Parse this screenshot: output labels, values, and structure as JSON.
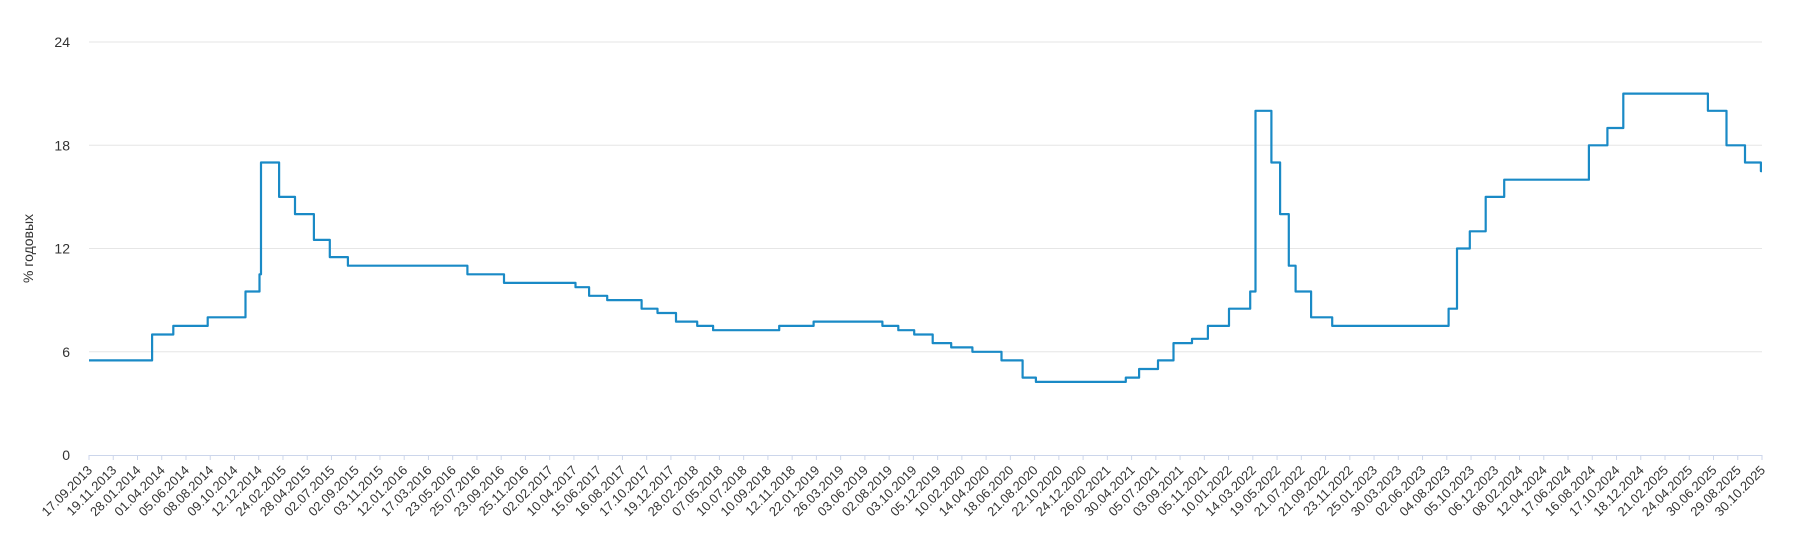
{
  "chart_data": {
    "type": "line",
    "title": "",
    "xlabel": "",
    "ylabel": "% годовых",
    "ylim": [
      0,
      24
    ],
    "yticks": [
      0,
      6,
      12,
      18,
      24
    ],
    "grid": true,
    "legend": "none",
    "colors": {
      "line": "#1a8ac6",
      "grid": "#e6e6e6",
      "axis": "#ccd6eb",
      "text": "#333333"
    },
    "xticks": [
      "17.09.2013",
      "19.11.2013",
      "28.01.2014",
      "01.04.2014",
      "05.06.2014",
      "08.08.2014",
      "09.10.2014",
      "12.12.2014",
      "24.02.2015",
      "28.04.2015",
      "02.07.2015",
      "02.09.2015",
      "03.11.2015",
      "12.01.2016",
      "17.03.2016",
      "23.05.2016",
      "25.07.2016",
      "23.09.2016",
      "25.11.2016",
      "02.02.2017",
      "10.04.2017",
      "15.06.2017",
      "16.08.2017",
      "17.10.2017",
      "19.12.2017",
      "28.02.2018",
      "07.05.2018",
      "10.07.2018",
      "10.09.2018",
      "12.11.2018",
      "22.01.2019",
      "26.03.2019",
      "03.06.2019",
      "02.08.2019",
      "03.10.2019",
      "05.12.2019",
      "10.02.2020",
      "14.04.2020",
      "18.06.2020",
      "21.08.2020",
      "22.10.2020",
      "24.12.2020",
      "26.02.2021",
      "30.04.2021",
      "05.07.2021",
      "03.09.2021",
      "05.11.2021",
      "10.01.2022",
      "14.03.2022",
      "19.05.2022",
      "21.07.2022",
      "21.09.2022",
      "23.11.2022",
      "25.01.2023",
      "30.03.2023",
      "02.06.2023",
      "04.08.2023",
      "05.10.2023",
      "06.12.2023",
      "08.02.2024",
      "12.04.2024",
      "17.06.2024",
      "16.08.2024",
      "17.10.2024",
      "18.12.2024",
      "21.02.2025",
      "24.04.2025",
      "30.06.2025",
      "29.08.2025",
      "30.10.2025"
    ],
    "series": [
      {
        "values": [
          [
            "17.09.2013",
            5.5
          ],
          [
            "03.03.2014",
            7.0
          ],
          [
            "28.04.2014",
            7.5
          ],
          [
            "28.07.2014",
            8.0
          ],
          [
            "05.11.2014",
            9.5
          ],
          [
            "12.12.2014",
            10.5
          ],
          [
            "16.12.2014",
            17.0
          ],
          [
            "02.02.2015",
            15.0
          ],
          [
            "16.03.2015",
            14.0
          ],
          [
            "05.05.2015",
            12.5
          ],
          [
            "16.06.2015",
            11.5
          ],
          [
            "03.08.2015",
            11.0
          ],
          [
            "14.06.2016",
            10.5
          ],
          [
            "19.09.2016",
            10.0
          ],
          [
            "27.03.2017",
            9.75
          ],
          [
            "02.05.2017",
            9.25
          ],
          [
            "19.06.2017",
            9.0
          ],
          [
            "18.09.2017",
            8.5
          ],
          [
            "30.10.2017",
            8.25
          ],
          [
            "18.12.2017",
            7.75
          ],
          [
            "12.02.2018",
            7.5
          ],
          [
            "26.03.2018",
            7.25
          ],
          [
            "17.09.2018",
            7.5
          ],
          [
            "17.12.2018",
            7.75
          ],
          [
            "17.06.2019",
            7.5
          ],
          [
            "29.07.2019",
            7.25
          ],
          [
            "09.09.2019",
            7.0
          ],
          [
            "28.10.2019",
            6.5
          ],
          [
            "16.12.2019",
            6.25
          ],
          [
            "10.02.2020",
            6.0
          ],
          [
            "27.04.2020",
            5.5
          ],
          [
            "22.06.2020",
            4.5
          ],
          [
            "27.07.2020",
            4.25
          ],
          [
            "22.03.2021",
            4.5
          ],
          [
            "26.04.2021",
            5.0
          ],
          [
            "15.06.2021",
            5.5
          ],
          [
            "26.07.2021",
            6.5
          ],
          [
            "13.09.2021",
            6.75
          ],
          [
            "25.10.2021",
            7.5
          ],
          [
            "20.12.2021",
            8.5
          ],
          [
            "14.02.2022",
            9.5
          ],
          [
            "28.02.2022",
            20.0
          ],
          [
            "11.04.2022",
            17.0
          ],
          [
            "04.05.2022",
            14.0
          ],
          [
            "27.05.2022",
            11.0
          ],
          [
            "14.06.2022",
            9.5
          ],
          [
            "25.07.2022",
            8.0
          ],
          [
            "19.09.2022",
            7.5
          ],
          [
            "24.07.2023",
            8.5
          ],
          [
            "15.08.2023",
            12.0
          ],
          [
            "18.09.2023",
            13.0
          ],
          [
            "30.10.2023",
            15.0
          ],
          [
            "18.12.2023",
            16.0
          ],
          [
            "29.07.2024",
            18.0
          ],
          [
            "16.09.2024",
            19.0
          ],
          [
            "28.10.2024",
            21.0
          ],
          [
            "09.06.2025",
            20.0
          ],
          [
            "28.07.2025",
            18.0
          ],
          [
            "15.09.2025",
            17.0
          ],
          [
            "27.10.2025",
            16.5
          ],
          [
            "30.10.2025",
            16.5
          ]
        ]
      }
    ]
  }
}
